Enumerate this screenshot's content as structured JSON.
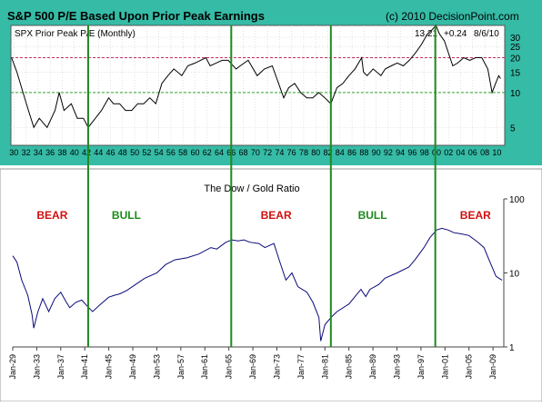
{
  "header": {
    "title": "S&P 500 P/E Based Upon Prior Peak Earnings",
    "copyright": "(c) 2010 DecisionPoint.com"
  },
  "colors": {
    "top_background": "#35bba6",
    "plot_background": "#ffffff",
    "pe_line": "#000000",
    "line_20": "#c0306a",
    "line_10": "#2fa52f",
    "vertical_lines": "#1f8a1f",
    "dowgold_line": "#0a0a7a",
    "bear_label": "#d01010",
    "bull_label": "#1a8a1a"
  },
  "chart_data": [
    {
      "type": "line",
      "title": "S&P 500 P/E Based Upon Prior Peak Earnings",
      "legend": "SPX Prior Peak P/E (Monthly)",
      "readout": {
        "value": "13.21",
        "change": "+0.24",
        "date": "8/6/10"
      },
      "y_scale": "log",
      "ylim": [
        3.5,
        38
      ],
      "y_ticks": [
        "5",
        "10",
        "15",
        "20",
        "25",
        "30"
      ],
      "x_ticks": [
        "30",
        "32",
        "34",
        "36",
        "38",
        "40",
        "42",
        "44",
        "46",
        "48",
        "50",
        "52",
        "54",
        "56",
        "58",
        "60",
        "62",
        "64",
        "66",
        "68",
        "70",
        "72",
        "74",
        "76",
        "78",
        "80",
        "82",
        "84",
        "86",
        "88",
        "90",
        "92",
        "94",
        "96",
        "98",
        "00",
        "02",
        "04",
        "06",
        "08",
        "10"
      ],
      "xlim": [
        1929.5,
        2011.3
      ],
      "reference_lines": [
        20,
        10
      ],
      "vertical_lines_x": [
        1942.3,
        1966.0,
        1982.5,
        1999.8
      ],
      "x": [
        1929.6,
        1930.5,
        1931.5,
        1932.4,
        1933.3,
        1934.2,
        1935.5,
        1936.8,
        1937.5,
        1938.3,
        1939.5,
        1940.5,
        1941.5,
        1942.3,
        1943.5,
        1944.5,
        1945.7,
        1946.5,
        1947.5,
        1948.5,
        1949.5,
        1950.5,
        1951.5,
        1952.5,
        1953.5,
        1954.5,
        1955.5,
        1956.5,
        1957.8,
        1958.8,
        1960,
        1961.8,
        1962.5,
        1963.5,
        1964.5,
        1965.5,
        1966.8,
        1967.5,
        1968.8,
        1970.3,
        1971.5,
        1972.8,
        1974.7,
        1975.5,
        1976.5,
        1977.5,
        1978.5,
        1979.5,
        1980.5,
        1981.5,
        1982.5,
        1983.5,
        1984.5,
        1985.5,
        1986.5,
        1987.6,
        1987.9,
        1988.5,
        1989.5,
        1990.8,
        1991.5,
        1992.5,
        1993.5,
        1994.5,
        1995.5,
        1996.5,
        1997.5,
        1998.5,
        1999.3,
        1999.9,
        2000.5,
        2001.3,
        2002.7,
        2003.5,
        2004.5,
        2005.5,
        2006.5,
        2007.5,
        2008.5,
        2009.2,
        2009.8,
        2010.3,
        2010.6
      ],
      "y": [
        20,
        15,
        10,
        7,
        5,
        6,
        5,
        7,
        10,
        7,
        8,
        6,
        6,
        5,
        6,
        7,
        9,
        8,
        8,
        7,
        7,
        8,
        8,
        9,
        8,
        12,
        14,
        16,
        14,
        17,
        18,
        20,
        17,
        18,
        19,
        19,
        16,
        17,
        19,
        14,
        16,
        17,
        9,
        11,
        12,
        10,
        9,
        9,
        10,
        9,
        8,
        11,
        12,
        14,
        16,
        20,
        15,
        14,
        16,
        14,
        16,
        17,
        18,
        17,
        19,
        22,
        26,
        32,
        35,
        38,
        32,
        28,
        17,
        18,
        20,
        19,
        20,
        20,
        16,
        10,
        12,
        14,
        13.2
      ]
    },
    {
      "type": "line",
      "title": "The Dow / Gold Ratio",
      "y_scale": "log",
      "ylim": [
        1,
        100
      ],
      "y_ticks": [
        "1",
        "10",
        "100"
      ],
      "x_ticks": [
        "Jan-29",
        "Jan-33",
        "Jan-37",
        "Jan-41",
        "Jan-45",
        "Jan-49",
        "Jan-53",
        "Jan-57",
        "Jan-61",
        "Jan-65",
        "Jan-69",
        "Jan-73",
        "Jan-77",
        "Jan-81",
        "Jan-85",
        "Jan-89",
        "Jan-93",
        "Jan-97",
        "Jan-01",
        "Jan-05",
        "Jan-09"
      ],
      "xlim": [
        1929.0,
        2010.8
      ],
      "annotations": [
        {
          "text": "BEAR",
          "x": 1933.0,
          "kind": "bear"
        },
        {
          "text": "BULL",
          "x": 1945.5,
          "kind": "bull"
        },
        {
          "text": "BEAR",
          "x": 1970.3,
          "kind": "bear"
        },
        {
          "text": "BULL",
          "x": 1986.5,
          "kind": "bull"
        },
        {
          "text": "BEAR",
          "x": 2003.5,
          "kind": "bear"
        }
      ],
      "x": [
        1929,
        1929.7,
        1930.5,
        1931.5,
        1932.2,
        1932.5,
        1933.2,
        1934,
        1935,
        1936,
        1937,
        1937.8,
        1938.5,
        1939.5,
        1940.5,
        1941.5,
        1942.3,
        1943.5,
        1945,
        1946,
        1946.8,
        1948,
        1949.5,
        1951,
        1953,
        1954.5,
        1956,
        1958,
        1960,
        1962,
        1963,
        1964.5,
        1965.5,
        1966.5,
        1967.5,
        1968.5,
        1970,
        1971,
        1972.5,
        1973.5,
        1974.5,
        1975.5,
        1976.5,
        1978,
        1979,
        1980,
        1980.3,
        1981,
        1982,
        1983,
        1985,
        1987,
        1987.8,
        1988.5,
        1990,
        1991,
        1993,
        1995,
        1996,
        1997.5,
        1998.5,
        1999.6,
        2000.5,
        2001.5,
        2002.5,
        2003.5,
        2005,
        2006.5,
        2007.5,
        2008.5,
        2009.5,
        2010.5
      ],
      "y": [
        17,
        14,
        8,
        5,
        2.8,
        1.8,
        3,
        4.5,
        3,
        4.5,
        5.5,
        4.2,
        3.4,
        4,
        4.3,
        3.5,
        3,
        3.7,
        4.7,
        5,
        5.2,
        5.8,
        7,
        8.5,
        10,
        13,
        15,
        16,
        18,
        22,
        21,
        26,
        28,
        27,
        28,
        26,
        25,
        22,
        25,
        14,
        8,
        10,
        6.5,
        5.5,
        4,
        2.5,
        1.2,
        2,
        2.5,
        3,
        3.8,
        6,
        4.8,
        6,
        7,
        8.5,
        10,
        12,
        15,
        22,
        30,
        38,
        40,
        38,
        35,
        34,
        32,
        26,
        22,
        14,
        9,
        8
      ]
    }
  ]
}
